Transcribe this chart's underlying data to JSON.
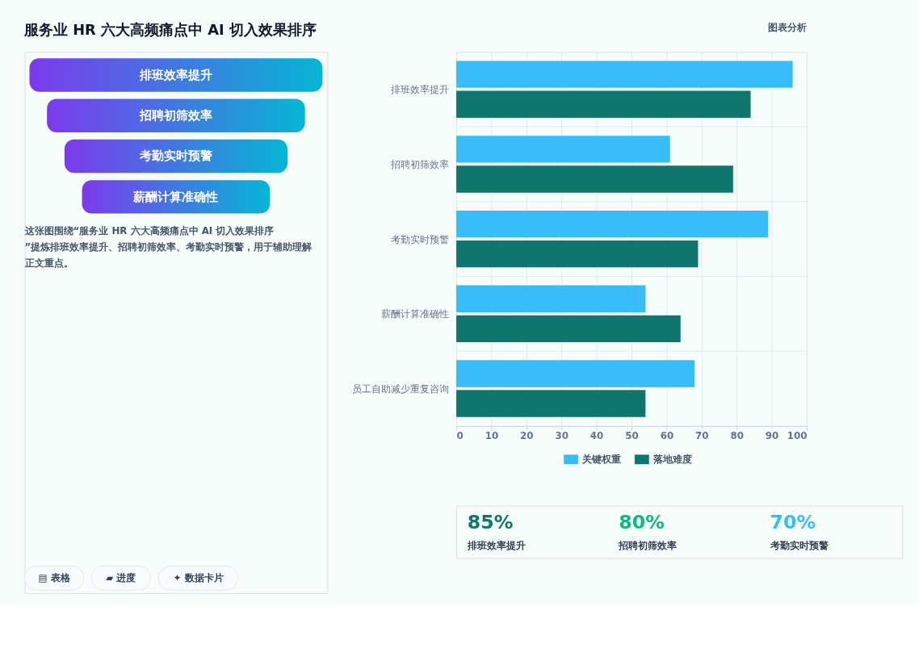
{
  "chart_data": [
    {
      "type": "other",
      "title": "服务业 HR 六大高频痛点中 AI 切入效果排序",
      "categories": [
        "排班效率提升",
        "招聘初筛效率",
        "考勤实时预警",
        "薪酬计算准确性"
      ],
      "annotations": [
        "这张图围绕“服务业 HR 六大高频痛点中 AI 切入效果排序”提炼排班效率提升、招聘初筛效率、考勤实时预警，用于辅助理解正文重点。",
        "▤ 表格",
        "▰ 进度",
        "✦ 数据卡片"
      ]
    },
    {
      "type": "bar",
      "orientation": "horizontal",
      "title": "图表分析",
      "categories": [
        "排班效率提升",
        "招聘初筛效率",
        "考勤实时预警",
        "薪酬计算准确性",
        "员工自助减少重复咨询"
      ],
      "series": [
        {
          "name": "关键权重",
          "color": "#38bdf8",
          "values": [
            96,
            61,
            89,
            54,
            68
          ]
        },
        {
          "name": "落地难度",
          "color": "#0f766e",
          "values": [
            84,
            79,
            69,
            64,
            54
          ]
        }
      ],
      "xlim": [
        0,
        100
      ],
      "xticks": [
        0,
        10,
        20,
        30,
        40,
        50,
        60,
        70,
        80,
        90,
        100
      ],
      "grid": true,
      "legend": "bottom"
    },
    {
      "type": "other",
      "categories": [
        "排班效率提升",
        "招聘初筛效率",
        "考勤实时预警"
      ],
      "value_labels": [
        "85%",
        "80%",
        "70%"
      ],
      "colors": [
        "#0f766e",
        "#10b981",
        "#38bdf8"
      ]
    }
  ]
}
